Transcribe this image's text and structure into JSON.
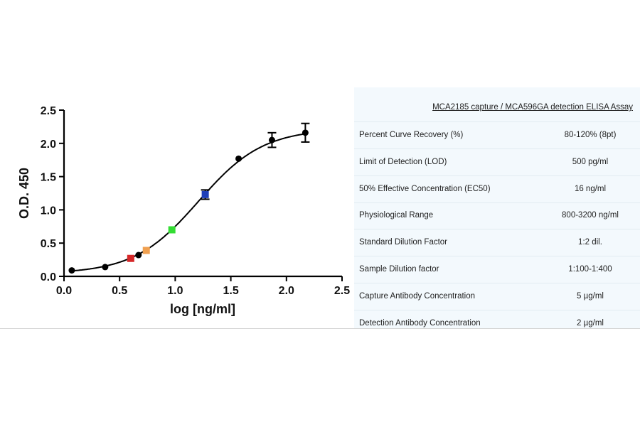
{
  "chart_data": {
    "type": "scatter",
    "xlabel": "log [ng/ml]",
    "ylabel": "O.D. 450",
    "xlim": [
      0,
      2.5
    ],
    "ylim": [
      0,
      2.5
    ],
    "xticks": [
      "0.0",
      "0.5",
      "1.0",
      "1.5",
      "2.0",
      "2.5"
    ],
    "yticks": [
      "0.0",
      "0.5",
      "1.0",
      "1.5",
      "2.0",
      "2.5"
    ],
    "grid": false,
    "fit_curve": {
      "model": "4PL",
      "bottom": 0.04,
      "top": 2.22,
      "logEC50": 1.21,
      "hill": 1.5
    },
    "points": [
      {
        "x": 0.07,
        "y": 0.09,
        "color": "#000000",
        "marker": "circle"
      },
      {
        "x": 0.37,
        "y": 0.14,
        "color": "#000000",
        "marker": "circle"
      },
      {
        "x": 0.6,
        "y": 0.27,
        "color": "#d62728",
        "marker": "square"
      },
      {
        "x": 0.67,
        "y": 0.32,
        "color": "#000000",
        "marker": "circle"
      },
      {
        "x": 0.74,
        "y": 0.39,
        "color": "#f0a050",
        "marker": "square"
      },
      {
        "x": 0.97,
        "y": 0.7,
        "color": "#33dd33",
        "marker": "square"
      },
      {
        "x": 1.27,
        "y": 1.23,
        "color": "#1f3fb8",
        "marker": "square",
        "err": 0.07
      },
      {
        "x": 1.57,
        "y": 1.77,
        "color": "#000000",
        "marker": "circle"
      },
      {
        "x": 1.87,
        "y": 2.05,
        "color": "#000000",
        "marker": "circle",
        "err": 0.11
      },
      {
        "x": 2.17,
        "y": 2.16,
        "color": "#000000",
        "marker": "circle",
        "err": 0.14
      }
    ]
  },
  "table": {
    "title": "MCA2185 capture / MCA596GA detection ELISA Assay",
    "rows": [
      {
        "label": "Percent Curve Recovery (%)",
        "value": "80-120% (8pt)"
      },
      {
        "label": "Limit of Detection (LOD)",
        "value": "500 pg/ml"
      },
      {
        "label": "50% Effective Concentration (EC50)",
        "value": "16 ng/ml"
      },
      {
        "label": "Physiological Range",
        "value": "800-3200 ng/ml"
      },
      {
        "label": "Standard Dilution Factor",
        "value": "1:2 dil."
      },
      {
        "label": "Sample Dilution factor",
        "value": "1:100-1:400"
      },
      {
        "label": "Capture Antibody Concentration",
        "value": "5 µg/ml"
      },
      {
        "label": "Detection Antibody Concentration",
        "value": "2 µg/ml"
      }
    ]
  }
}
